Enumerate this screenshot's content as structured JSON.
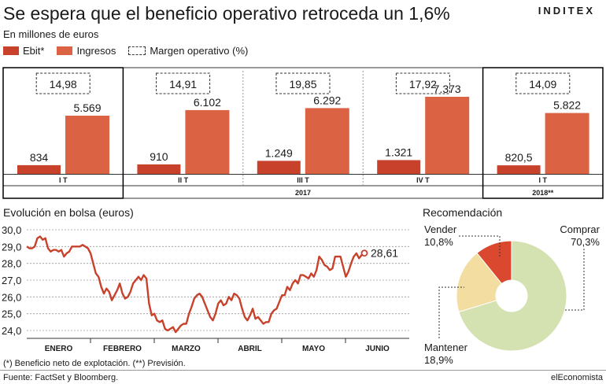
{
  "header": {
    "title": "Se espera que el beneficio operativo retroceda un 1,6%",
    "brand": "INDITEX",
    "subtitle": "En millones de euros"
  },
  "legend": {
    "ebit": "Ebit*",
    "ingresos": "Ingresos",
    "margen": "Margen operativo (%)"
  },
  "colors": {
    "ebit": "#c8412b",
    "ingresos": "#db6344",
    "line": "#c8412b",
    "pie_comprar": "#d4e1b0",
    "pie_mantener": "#f3dda0",
    "pie_vender": "#d9482f"
  },
  "chart_data": [
    {
      "type": "bar",
      "title": "Se espera que el beneficio operativo retroceda un 1,6%",
      "subtitle": "En millones de euros",
      "categories": [
        "I T",
        "II T",
        "III T",
        "IV T",
        "I T"
      ],
      "groups": [
        "2017",
        "2018**"
      ],
      "series": [
        {
          "name": "Ebit*",
          "values": [
            834,
            910,
            1249,
            1321,
            820.5
          ],
          "labels": [
            "834",
            "910",
            "1.249",
            "1.321",
            "820,5"
          ]
        },
        {
          "name": "Ingresos",
          "values": [
            5569,
            6102,
            6292,
            7373,
            5822
          ],
          "labels": [
            "5.569",
            "6.102",
            "6.292",
            "7.373",
            "5.822"
          ]
        },
        {
          "name": "Margen operativo (%)",
          "values": [
            14.98,
            14.91,
            19.85,
            17.92,
            14.09
          ],
          "labels": [
            "14,98",
            "14,91",
            "19,85",
            "17,92",
            "14,09"
          ]
        }
      ]
    },
    {
      "type": "line",
      "title": "Evolución en bolsa (euros)",
      "x_ticks": [
        "ENERO",
        "FEBRERO",
        "MARZO",
        "ABRIL",
        "MAYO",
        "JUNIO"
      ],
      "y_ticks": [
        "30,0",
        "29,0",
        "28,0",
        "27,0",
        "26,0",
        "25,0",
        "24,0"
      ],
      "ylim": [
        23.5,
        30.0
      ],
      "last_label": "28,61",
      "values": [
        29.0,
        28.9,
        28.9,
        29.0,
        29.5,
        29.6,
        29.4,
        29.5,
        28.9,
        28.7,
        28.8,
        28.8,
        28.7,
        28.8,
        28.4,
        28.6,
        28.7,
        29.0,
        29.0,
        29.0,
        29.0,
        29.1,
        29.0,
        28.9,
        28.6,
        28.0,
        27.4,
        27.2,
        26.6,
        26.2,
        26.5,
        26.3,
        25.8,
        26.1,
        26.4,
        26.8,
        26.2,
        25.9,
        26.0,
        26.3,
        26.8,
        27.0,
        27.2,
        27.0,
        27.3,
        27.1,
        25.6,
        24.9,
        25.0,
        24.6,
        24.5,
        24.6,
        24.1,
        24.0,
        24.1,
        24.2,
        23.9,
        24.1,
        24.3,
        24.4,
        24.4,
        25.0,
        25.4,
        25.9,
        26.1,
        26.2,
        26.0,
        25.6,
        25.2,
        24.8,
        24.6,
        25.0,
        25.6,
        25.8,
        25.5,
        25.6,
        26.0,
        25.8,
        26.2,
        26.1,
        25.9,
        25.3,
        24.8,
        24.6,
        24.9,
        25.3,
        24.7,
        24.8,
        24.6,
        24.4,
        24.5,
        24.5,
        25.0,
        25.2,
        25.3,
        25.7,
        26.1,
        26.1,
        26.6,
        26.4,
        26.8,
        27.0,
        26.8,
        27.3,
        27.3,
        27.2,
        27.1,
        27.4,
        27.2,
        27.6,
        28.4,
        28.2,
        27.9,
        27.8,
        27.6,
        27.7,
        28.4,
        28.4,
        28.4,
        27.8,
        27.2,
        27.5,
        28.0,
        28.4,
        28.6,
        28.3,
        28.5,
        28.61
      ]
    },
    {
      "type": "pie",
      "title": "Recomendación",
      "slices": [
        {
          "name": "Comprar",
          "value": 70.3,
          "label": "70,3%"
        },
        {
          "name": "Mantener",
          "value": 18.9,
          "label": "18,9%"
        },
        {
          "name": "Vender",
          "value": 10.8,
          "label": "10,8%"
        }
      ]
    }
  ],
  "footer": {
    "footnote": "(*) Beneficio neto de explotación. (**) Previsión.",
    "source": "Fuente: FactSet y Bloomberg.",
    "credit": "elEconomista"
  }
}
